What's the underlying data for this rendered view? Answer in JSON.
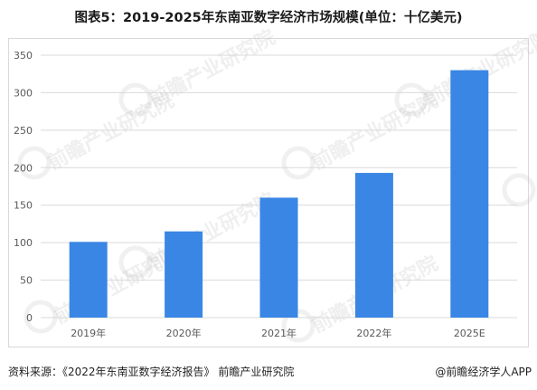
{
  "title": "图表5：2019-2025年东南亚数字经济市场规模(单位：十亿美元)",
  "footer": {
    "source": "资料来源：《2022年东南亚数字经济报告》 前瞻产业研究院",
    "credit": "@前瞻经济学人APP"
  },
  "watermark": {
    "text": "前瞻产业研究院"
  },
  "colors": {
    "bar": "#3a86e4",
    "grid": "#d9d9d9",
    "axis_text": "#595959"
  },
  "chart_data": {
    "type": "bar",
    "title": "图表5：2019-2025年东南亚数字经济市场规模(单位：十亿美元)",
    "categories": [
      "2019年",
      "2020年",
      "2021年",
      "2022年",
      "2025E"
    ],
    "values": [
      101,
      115,
      160,
      193,
      330
    ],
    "xlabel": "",
    "ylabel": "",
    "ylim": [
      0,
      350
    ],
    "yticks": [
      0,
      50,
      100,
      150,
      200,
      250,
      300,
      350
    ],
    "grid": true,
    "legend": "none"
  }
}
